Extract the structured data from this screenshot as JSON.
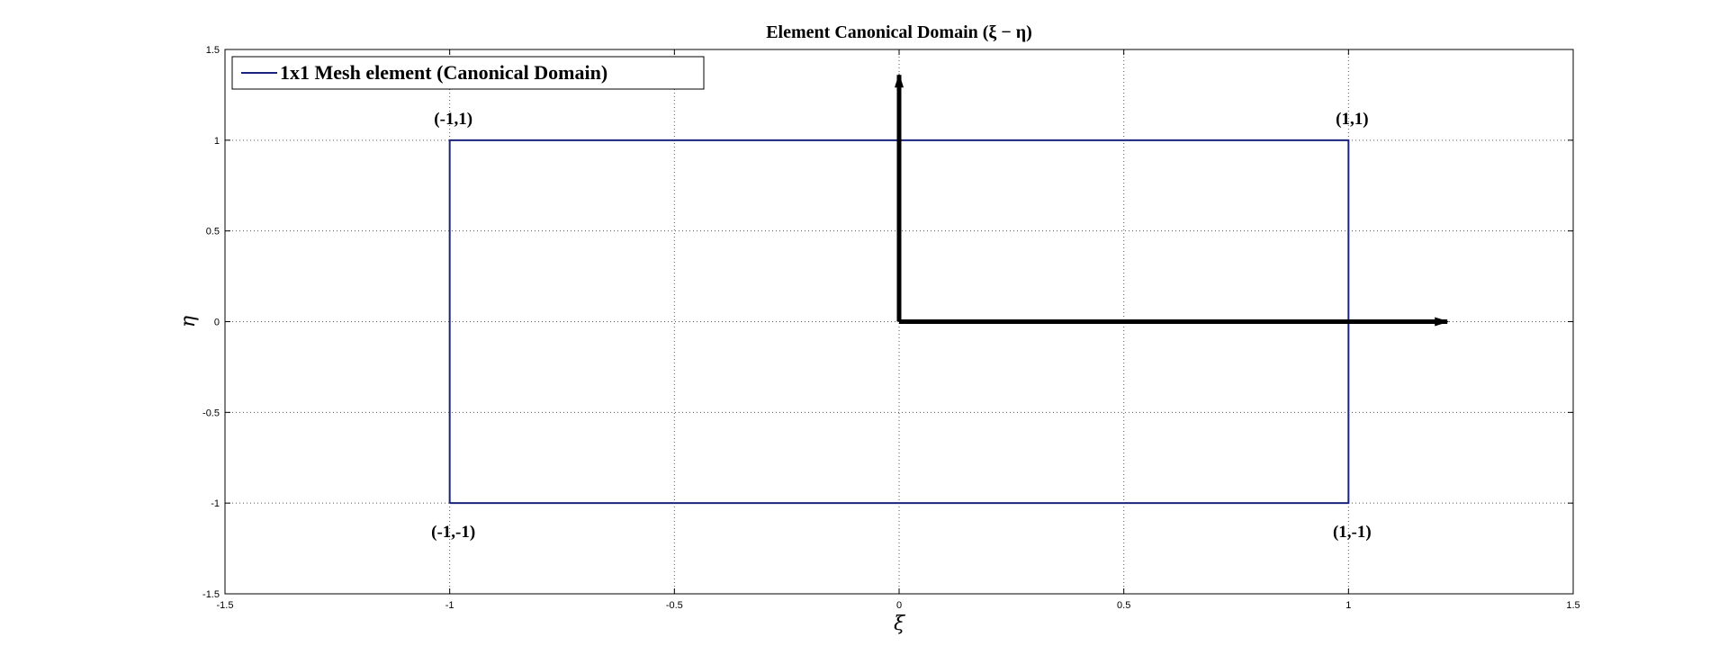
{
  "chart_data": {
    "type": "line",
    "title": "Element Canonical Domain (ξ − η)",
    "xlabel": "ξ",
    "ylabel": "η",
    "xlim": [
      -1.5,
      1.5
    ],
    "ylim": [
      -1.5,
      1.5
    ],
    "x_ticks": [
      "-1.5",
      "-1",
      "-0.5",
      "0",
      "0.5",
      "1",
      "1.5"
    ],
    "y_ticks": [
      "-1.5",
      "-1",
      "-0.5",
      "0",
      "0.5",
      "1",
      "1.5"
    ],
    "x_tick_values": [
      -1.5,
      -1,
      -0.5,
      0,
      0.5,
      1,
      1.5
    ],
    "y_tick_values": [
      -1.5,
      -1,
      -0.5,
      0,
      0.5,
      1,
      1.5
    ],
    "grid": true,
    "legend_position": "top-left",
    "series": [
      {
        "name": "1x1 Mesh element (Canonical Domain)",
        "color": "#1a237e",
        "x": [
          -1,
          1,
          1,
          -1,
          -1
        ],
        "y": [
          -1,
          -1,
          1,
          1,
          -1
        ]
      }
    ],
    "arrows": [
      {
        "from": [
          0,
          0
        ],
        "to": [
          1.22,
          0
        ],
        "color": "#000000"
      },
      {
        "from": [
          0,
          0
        ],
        "to": [
          0,
          1.36
        ],
        "color": "#000000"
      }
    ],
    "annotations": [
      {
        "text": "(-1,1)",
        "x": -1,
        "y": 1,
        "position": "above"
      },
      {
        "text": "(1,1)",
        "x": 1,
        "y": 1,
        "position": "above"
      },
      {
        "text": "(-1,-1)",
        "x": -1,
        "y": -1,
        "position": "below"
      },
      {
        "text": "(1,-1)",
        "x": 1,
        "y": -1,
        "position": "below"
      }
    ]
  }
}
